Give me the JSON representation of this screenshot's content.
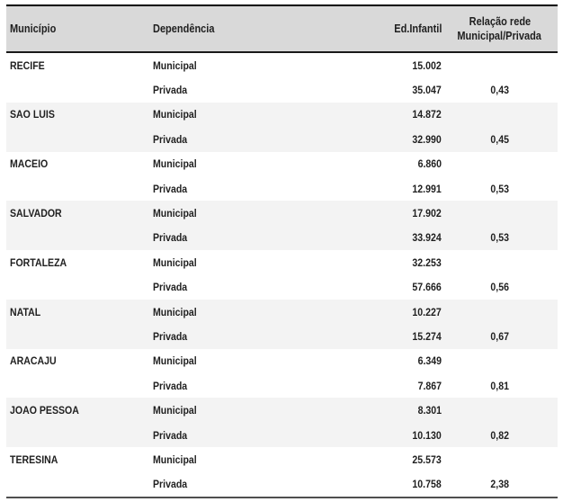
{
  "header": {
    "municipio": "Município",
    "dependencia": "Dependência",
    "ed_infantil": "Ed.Infantil",
    "relacao_line1": "Relação rede",
    "relacao_line2": "Municipal/Privada"
  },
  "colors": {
    "header_bg": "#d9d9d9",
    "band_bg": "#f3f3f3",
    "text": "#1f1f1f",
    "border_top": "#000000",
    "border_bottom": "#4f4f4f"
  },
  "table": {
    "rows": [
      {
        "municipio": "RECIFE",
        "dependencia": "Municipal",
        "ed_infantil": "15.002",
        "relacao": ""
      },
      {
        "municipio": "",
        "dependencia": "Privada",
        "ed_infantil": "35.047",
        "relacao": "0,43"
      },
      {
        "municipio": "SAO LUIS",
        "dependencia": "Municipal",
        "ed_infantil": "14.872",
        "relacao": ""
      },
      {
        "municipio": "",
        "dependencia": "Privada",
        "ed_infantil": "32.990",
        "relacao": "0,45"
      },
      {
        "municipio": "MACEIO",
        "dependencia": "Municipal",
        "ed_infantil": "6.860",
        "relacao": ""
      },
      {
        "municipio": "",
        "dependencia": "Privada",
        "ed_infantil": "12.991",
        "relacao": "0,53"
      },
      {
        "municipio": "SALVADOR",
        "dependencia": "Municipal",
        "ed_infantil": "17.902",
        "relacao": ""
      },
      {
        "municipio": "",
        "dependencia": "Privada",
        "ed_infantil": "33.924",
        "relacao": "0,53"
      },
      {
        "municipio": "FORTALEZA",
        "dependencia": "Municipal",
        "ed_infantil": "32.253",
        "relacao": ""
      },
      {
        "municipio": "",
        "dependencia": "Privada",
        "ed_infantil": "57.666",
        "relacao": "0,56"
      },
      {
        "municipio": "NATAL",
        "dependencia": "Municipal",
        "ed_infantil": "10.227",
        "relacao": ""
      },
      {
        "municipio": "",
        "dependencia": "Privada",
        "ed_infantil": "15.274",
        "relacao": "0,67"
      },
      {
        "municipio": "ARACAJU",
        "dependencia": "Municipal",
        "ed_infantil": "6.349",
        "relacao": ""
      },
      {
        "municipio": "",
        "dependencia": "Privada",
        "ed_infantil": "7.867",
        "relacao": "0,81"
      },
      {
        "municipio": "JOAO PESSOA",
        "dependencia": "Municipal",
        "ed_infantil": "8.301",
        "relacao": ""
      },
      {
        "municipio": "",
        "dependencia": "Privada",
        "ed_infantil": "10.130",
        "relacao": "0,82"
      },
      {
        "municipio": "TERESINA",
        "dependencia": "Municipal",
        "ed_infantil": "25.573",
        "relacao": ""
      },
      {
        "municipio": "",
        "dependencia": "Privada",
        "ed_infantil": "10.758",
        "relacao": "2,38"
      }
    ]
  }
}
